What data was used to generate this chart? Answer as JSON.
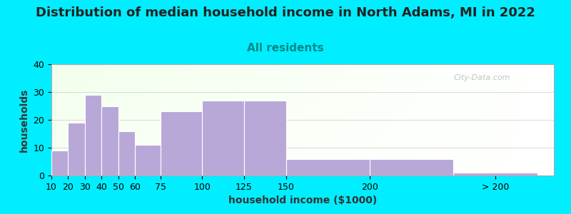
{
  "title": "Distribution of median household income in North Adams, MI in 2022",
  "subtitle": "All residents",
  "xlabel": "household income ($1000)",
  "ylabel": "households",
  "bar_color": "#b8a8d8",
  "bar_edge_color": "#ffffff",
  "background_color": "#00eeff",
  "ylim": [
    0,
    40
  ],
  "yticks": [
    0,
    10,
    20,
    30,
    40
  ],
  "bar_heights": [
    9,
    19,
    29,
    25,
    16,
    11,
    23,
    27,
    27,
    6,
    6,
    1
  ],
  "bar_widths": [
    10,
    10,
    10,
    10,
    10,
    15,
    25,
    25,
    25,
    50,
    50,
    50
  ],
  "bar_lefts": [
    10,
    20,
    30,
    40,
    50,
    60,
    75,
    100,
    125,
    150,
    200,
    250
  ],
  "tick_positions": [
    10,
    20,
    30,
    40,
    50,
    60,
    75,
    100,
    125,
    150,
    200,
    275
  ],
  "tick_labels": [
    "10",
    "20",
    "30",
    "40",
    "50",
    "60",
    "75",
    "100",
    "125",
    "150",
    "200",
    "> 200"
  ],
  "xlim": [
    10,
    310
  ],
  "watermark_text": "City-Data.com",
  "title_fontsize": 13,
  "subtitle_fontsize": 11,
  "label_fontsize": 10,
  "tick_fontsize": 9,
  "subtitle_color": "#008888",
  "title_color": "#222222",
  "ylabel_color": "#333333",
  "xlabel_color": "#333333"
}
